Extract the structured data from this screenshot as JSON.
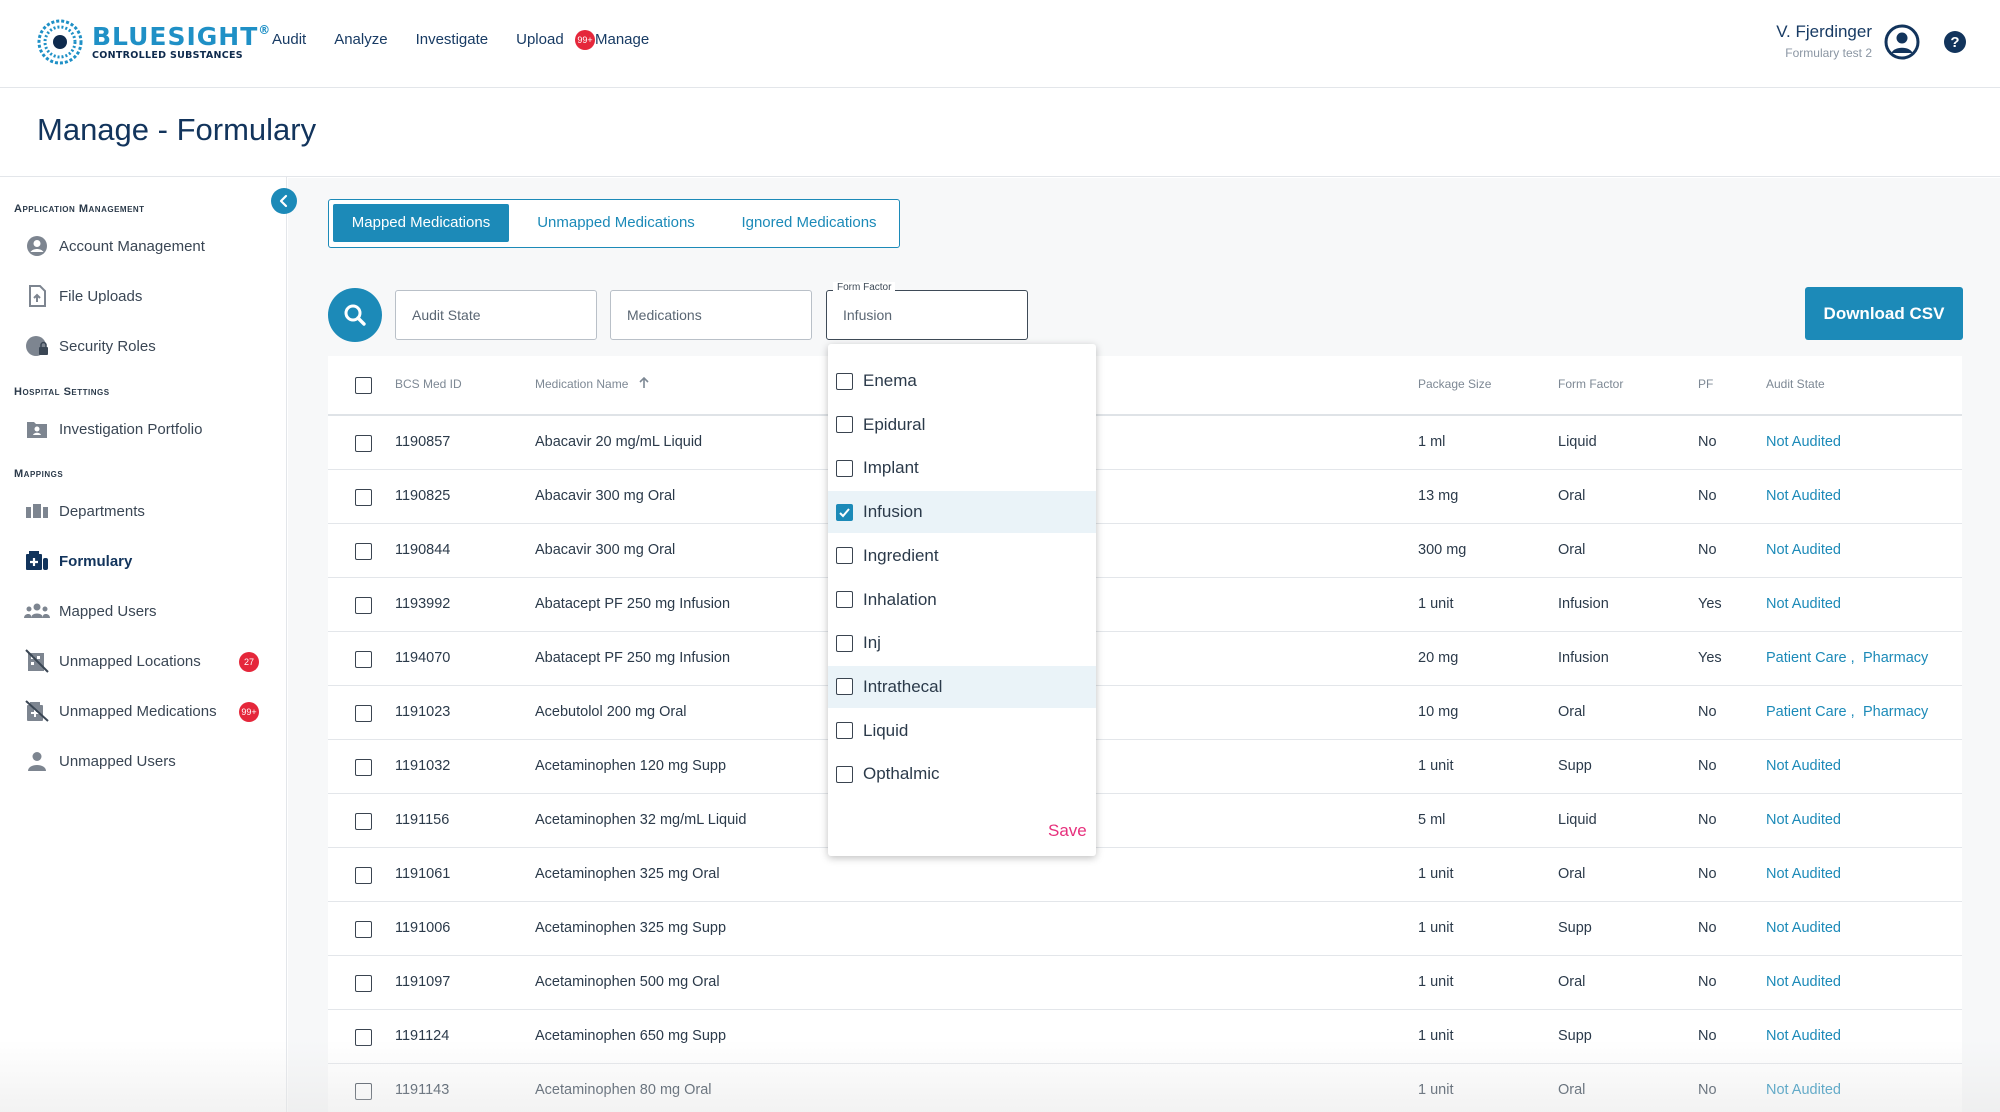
{
  "header": {
    "logo_word": "BLUESIGHT",
    "logo_reg": "®",
    "logo_sub": "CONTROLLED SUBSTANCES",
    "nav": [
      "Audit",
      "Analyze",
      "Investigate",
      "Upload",
      "Manage"
    ],
    "nav_badge": "99+",
    "user_name": "V. Fjerdinger",
    "user_org": "Formulary test 2"
  },
  "page_title": "Manage - Formulary",
  "sidebar": {
    "sections": [
      "Application Management",
      "Hospital Settings",
      "Mappings"
    ],
    "items": [
      {
        "label": "Account Management",
        "icon": "account-circle-icon"
      },
      {
        "label": "File Uploads",
        "icon": "file-upload-icon"
      },
      {
        "label": "Security Roles",
        "icon": "globe-lock-icon"
      },
      {
        "label": "Investigation Portfolio",
        "icon": "folder-person-icon"
      },
      {
        "label": "Departments",
        "icon": "departments-icon"
      },
      {
        "label": "Formulary",
        "icon": "formulary-icon"
      },
      {
        "label": "Mapped Users",
        "icon": "users-group-icon"
      },
      {
        "label": "Unmapped Locations",
        "icon": "location-off-icon",
        "badge": "27"
      },
      {
        "label": "Unmapped Medications",
        "icon": "medication-off-icon",
        "badge": "99+"
      },
      {
        "label": "Unmapped Users",
        "icon": "person-icon"
      }
    ]
  },
  "tabs": [
    "Mapped Medications",
    "Unmapped Medications",
    "Ignored Medications"
  ],
  "filters": {
    "audit_state": "Audit State",
    "medications": "Medications",
    "form_factor_label": "Form Factor",
    "form_factor_value": "Infusion"
  },
  "download_label": "Download CSV",
  "table": {
    "headers": [
      "BCS Med ID",
      "Medication Name",
      "Package Size",
      "Form Factor",
      "PF",
      "Audit State"
    ],
    "rows": [
      [
        "1190857",
        "Abacavir 20 mg/mL Liquid",
        "1 ml",
        "Liquid",
        "No",
        "Not Audited",
        ""
      ],
      [
        "1190825",
        "Abacavir 300 mg Oral",
        "13 mg",
        "Oral",
        "No",
        "Not Audited",
        ""
      ],
      [
        "1190844",
        "Abacavir 300 mg Oral",
        "300 mg",
        "Oral",
        "No",
        "Not Audited",
        ""
      ],
      [
        "1193992",
        "Abatacept PF 250 mg Infusion",
        "1 unit",
        "Infusion",
        "Yes",
        "Not Audited",
        ""
      ],
      [
        "1194070",
        "Abatacept PF 250 mg Infusion",
        "20 mg",
        "Infusion",
        "Yes",
        "Patient Care ,",
        "Pharmacy"
      ],
      [
        "1191023",
        "Acebutolol 200 mg Oral",
        "10 mg",
        "Oral",
        "No",
        "Patient Care ,",
        "Pharmacy"
      ],
      [
        "1191032",
        "Acetaminophen 120 mg Supp",
        "1 unit",
        "Supp",
        "No",
        "Not Audited",
        ""
      ],
      [
        "1191156",
        "Acetaminophen 32 mg/mL Liquid",
        "5 ml",
        "Liquid",
        "No",
        "Not Audited",
        ""
      ],
      [
        "1191061",
        "Acetaminophen 325 mg Oral",
        "1 unit",
        "Oral",
        "No",
        "Not Audited",
        ""
      ],
      [
        "1191006",
        "Acetaminophen 325 mg Supp",
        "1 unit",
        "Supp",
        "No",
        "Not Audited",
        ""
      ],
      [
        "1191097",
        "Acetaminophen 500 mg Oral",
        "1 unit",
        "Oral",
        "No",
        "Not Audited",
        ""
      ],
      [
        "1191124",
        "Acetaminophen 650 mg Supp",
        "1 unit",
        "Supp",
        "No",
        "Not Audited",
        ""
      ],
      [
        "1191143",
        "Acetaminophen 80 mg Oral",
        "1 unit",
        "Oral",
        "No",
        "Not Audited",
        ""
      ]
    ]
  },
  "dropdown": {
    "options": [
      {
        "label": "Enema",
        "checked": false
      },
      {
        "label": "Epidural",
        "checked": false
      },
      {
        "label": "Implant",
        "checked": false
      },
      {
        "label": "Infusion",
        "checked": true
      },
      {
        "label": "Ingredient",
        "checked": false
      },
      {
        "label": "Inhalation",
        "checked": false
      },
      {
        "label": "Inj",
        "checked": false
      },
      {
        "label": "Intrathecal",
        "checked": false
      },
      {
        "label": "Liquid",
        "checked": false
      },
      {
        "label": "Opthalmic",
        "checked": false
      }
    ],
    "save_label": "Save"
  },
  "colors": {
    "accent": "#1c8ab8",
    "navy": "#12345c",
    "badge": "#e5273b",
    "save": "#e6307c"
  }
}
